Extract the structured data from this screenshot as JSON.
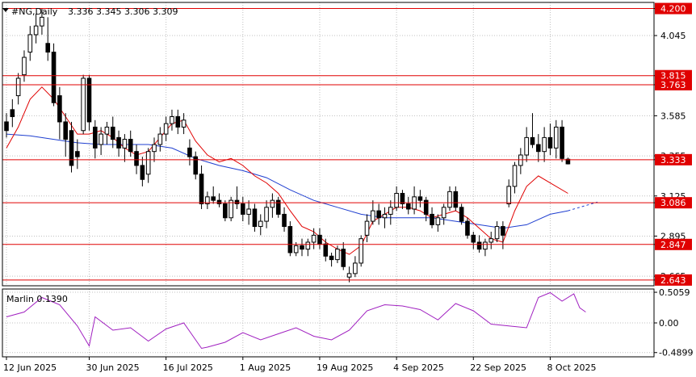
{
  "header": {
    "symbol": "#NG,Daily",
    "ohlc": "3.336 3.345 3.306 3.309"
  },
  "colors": {
    "background": "#ffffff",
    "candle": "#000000",
    "level_line": "#e00000",
    "level_label_bg": "#e00000",
    "level_label_text": "#ffffff",
    "ma_fast": "#e00000",
    "ma_slow": "#1f3fd0",
    "oscillator": "#a020c0",
    "grid": "#c0c0c0"
  },
  "chart_data": {
    "type": "candlestick",
    "price_axis": {
      "ylim": [
        2.61,
        4.235
      ],
      "ticks": [
        "4.200",
        "4.045",
        "3.815",
        "3.763",
        "3.585",
        "3.355",
        "3.333",
        "3.125",
        "3.086",
        "2.895",
        "2.847",
        "2.665",
        "2.643"
      ]
    },
    "x_axis": {
      "labels": [
        "12 Jun 2025",
        "30 Jun 2025",
        "16 Jul 2025",
        "1 Aug 2025",
        "19 Aug 2025",
        "4 Sep 2025",
        "22 Sep 2025",
        "8 Oct 2025"
      ],
      "label_bar_index": [
        0,
        14,
        27,
        40,
        53,
        66,
        79,
        92
      ]
    },
    "levels": [
      {
        "value": 4.2,
        "label": "4.200"
      },
      {
        "value": 3.815,
        "label": "3.815"
      },
      {
        "value": 3.763,
        "label": "3.763"
      },
      {
        "value": 3.333,
        "label": "3.333"
      },
      {
        "value": 3.086,
        "label": "3.086"
      },
      {
        "value": 2.847,
        "label": "2.847"
      },
      {
        "value": 2.643,
        "label": "2.643"
      }
    ],
    "candles": [
      [
        3.55,
        3.6,
        3.46,
        3.5
      ],
      [
        3.62,
        3.68,
        3.52,
        3.58
      ],
      [
        3.7,
        3.83,
        3.65,
        3.8
      ],
      [
        3.82,
        3.96,
        3.78,
        3.92
      ],
      [
        3.95,
        4.1,
        3.9,
        4.05
      ],
      [
        4.05,
        4.17,
        4.0,
        4.1
      ],
      [
        4.1,
        4.2,
        4.05,
        4.15
      ],
      [
        4.0,
        4.15,
        3.9,
        3.95
      ],
      [
        3.95,
        4.0,
        3.64,
        3.66
      ],
      [
        3.7,
        3.75,
        3.45,
        3.55
      ],
      [
        3.55,
        3.6,
        3.35,
        3.45
      ],
      [
        3.5,
        3.55,
        3.26,
        3.3
      ],
      [
        3.38,
        3.45,
        3.28,
        3.35
      ],
      [
        3.5,
        3.82,
        3.48,
        3.8
      ],
      [
        3.8,
        3.82,
        3.5,
        3.55
      ],
      [
        3.52,
        3.56,
        3.34,
        3.4
      ],
      [
        3.42,
        3.52,
        3.36,
        3.48
      ],
      [
        3.48,
        3.55,
        3.42,
        3.52
      ],
      [
        3.52,
        3.58,
        3.4,
        3.45
      ],
      [
        3.46,
        3.5,
        3.35,
        3.4
      ],
      [
        3.4,
        3.48,
        3.32,
        3.45
      ],
      [
        3.45,
        3.5,
        3.35,
        3.38
      ],
      [
        3.38,
        3.42,
        3.25,
        3.3
      ],
      [
        3.3,
        3.35,
        3.18,
        3.22
      ],
      [
        3.25,
        3.4,
        3.2,
        3.38
      ],
      [
        3.38,
        3.46,
        3.32,
        3.42
      ],
      [
        3.42,
        3.52,
        3.38,
        3.48
      ],
      [
        3.48,
        3.58,
        3.44,
        3.54
      ],
      [
        3.54,
        3.62,
        3.5,
        3.58
      ],
      [
        3.58,
        3.62,
        3.48,
        3.52
      ],
      [
        3.52,
        3.6,
        3.48,
        3.56
      ],
      [
        3.4,
        3.45,
        3.3,
        3.35
      ],
      [
        3.35,
        3.38,
        3.22,
        3.25
      ],
      [
        3.25,
        3.3,
        3.05,
        3.08
      ],
      [
        3.08,
        3.15,
        3.05,
        3.12
      ],
      [
        3.12,
        3.18,
        3.08,
        3.1
      ],
      [
        3.1,
        3.14,
        3.06,
        3.08
      ],
      [
        3.08,
        3.1,
        2.98,
        3.0
      ],
      [
        3.0,
        3.12,
        2.98,
        3.1
      ],
      [
        3.1,
        3.18,
        3.05,
        3.08
      ],
      [
        3.08,
        3.12,
        2.98,
        3.02
      ],
      [
        3.02,
        3.1,
        2.96,
        3.05
      ],
      [
        3.05,
        3.08,
        2.92,
        2.95
      ],
      [
        2.95,
        3.02,
        2.9,
        2.98
      ],
      [
        2.98,
        3.1,
        2.94,
        3.06
      ],
      [
        3.06,
        3.14,
        3.0,
        3.1
      ],
      [
        3.1,
        3.12,
        3.0,
        3.02
      ],
      [
        3.02,
        3.06,
        2.92,
        2.95
      ],
      [
        2.95,
        2.98,
        2.78,
        2.8
      ],
      [
        2.8,
        2.86,
        2.78,
        2.84
      ],
      [
        2.84,
        2.88,
        2.78,
        2.82
      ],
      [
        2.82,
        2.88,
        2.78,
        2.86
      ],
      [
        2.86,
        2.94,
        2.82,
        2.9
      ],
      [
        2.9,
        2.94,
        2.82,
        2.85
      ],
      [
        2.85,
        2.88,
        2.75,
        2.78
      ],
      [
        2.78,
        2.8,
        2.72,
        2.76
      ],
      [
        2.76,
        2.84,
        2.74,
        2.82
      ],
      [
        2.82,
        2.86,
        2.7,
        2.72
      ],
      [
        2.66,
        2.72,
        2.63,
        2.68
      ],
      [
        2.68,
        2.78,
        2.66,
        2.74
      ],
      [
        2.74,
        2.9,
        2.72,
        2.88
      ],
      [
        2.9,
        3.02,
        2.86,
        2.98
      ],
      [
        2.98,
        3.1,
        2.96,
        3.04
      ],
      [
        3.04,
        3.08,
        2.96,
        3.0
      ],
      [
        3.0,
        3.06,
        2.94,
        3.02
      ],
      [
        3.02,
        3.1,
        2.96,
        3.06
      ],
      [
        3.06,
        3.18,
        3.04,
        3.14
      ],
      [
        3.14,
        3.16,
        3.05,
        3.08
      ],
      [
        3.08,
        3.12,
        3.02,
        3.05
      ],
      [
        3.05,
        3.18,
        3.02,
        3.12
      ],
      [
        3.12,
        3.16,
        3.06,
        3.1
      ],
      [
        3.1,
        3.12,
        2.98,
        3.02
      ],
      [
        3.02,
        3.06,
        2.94,
        2.96
      ],
      [
        2.96,
        3.02,
        2.92,
        3.0
      ],
      [
        3.0,
        3.08,
        2.96,
        3.06
      ],
      [
        3.06,
        3.18,
        3.04,
        3.15
      ],
      [
        3.15,
        3.18,
        3.04,
        3.06
      ],
      [
        3.06,
        3.08,
        2.96,
        2.98
      ],
      [
        2.98,
        3.0,
        2.88,
        2.9
      ],
      [
        2.9,
        2.92,
        2.82,
        2.86
      ],
      [
        2.86,
        2.9,
        2.8,
        2.82
      ],
      [
        2.82,
        2.88,
        2.78,
        2.86
      ],
      [
        2.86,
        2.92,
        2.82,
        2.88
      ],
      [
        2.88,
        2.98,
        2.86,
        2.95
      ],
      [
        2.95,
        2.98,
        2.82,
        2.9
      ],
      [
        3.08,
        3.22,
        3.06,
        3.18
      ],
      [
        3.18,
        3.32,
        3.14,
        3.3
      ],
      [
        3.3,
        3.4,
        3.25,
        3.36
      ],
      [
        3.36,
        3.52,
        3.32,
        3.46
      ],
      [
        3.46,
        3.6,
        3.4,
        3.42
      ],
      [
        3.42,
        3.48,
        3.32,
        3.38
      ],
      [
        3.38,
        3.52,
        3.32,
        3.46
      ],
      [
        3.46,
        3.54,
        3.36,
        3.4
      ],
      [
        3.4,
        3.56,
        3.34,
        3.52
      ],
      [
        3.52,
        3.56,
        3.32,
        3.34
      ],
      [
        3.336,
        3.345,
        3.306,
        3.309
      ]
    ],
    "ma_fast": [
      [
        0,
        3.4
      ],
      [
        2,
        3.52
      ],
      [
        4,
        3.68
      ],
      [
        6,
        3.75
      ],
      [
        8,
        3.68
      ],
      [
        10,
        3.58
      ],
      [
        12,
        3.48
      ],
      [
        14,
        3.48
      ],
      [
        16,
        3.5
      ],
      [
        18,
        3.46
      ],
      [
        20,
        3.4
      ],
      [
        22,
        3.36
      ],
      [
        24,
        3.38
      ],
      [
        26,
        3.46
      ],
      [
        28,
        3.54
      ],
      [
        30,
        3.56
      ],
      [
        32,
        3.44
      ],
      [
        34,
        3.36
      ],
      [
        36,
        3.32
      ],
      [
        38,
        3.34
      ],
      [
        40,
        3.3
      ],
      [
        42,
        3.24
      ],
      [
        44,
        3.2
      ],
      [
        46,
        3.14
      ],
      [
        48,
        3.04
      ],
      [
        50,
        2.95
      ],
      [
        52,
        2.92
      ],
      [
        54,
        2.86
      ],
      [
        56,
        2.82
      ],
      [
        58,
        2.79
      ],
      [
        60,
        2.84
      ],
      [
        62,
        2.98
      ],
      [
        64,
        3.02
      ],
      [
        66,
        3.06
      ],
      [
        68,
        3.06
      ],
      [
        70,
        3.04
      ],
      [
        72,
        3.0
      ],
      [
        74,
        3.02
      ],
      [
        76,
        3.04
      ],
      [
        78,
        3.0
      ],
      [
        80,
        2.94
      ],
      [
        82,
        2.88
      ],
      [
        84,
        2.86
      ],
      [
        86,
        3.04
      ],
      [
        88,
        3.18
      ],
      [
        90,
        3.24
      ],
      [
        92,
        3.2
      ],
      [
        95,
        3.14
      ]
    ],
    "ma_slow": [
      [
        0,
        3.48
      ],
      [
        4,
        3.47
      ],
      [
        8,
        3.45
      ],
      [
        12,
        3.43
      ],
      [
        16,
        3.42
      ],
      [
        20,
        3.42
      ],
      [
        24,
        3.42
      ],
      [
        28,
        3.4
      ],
      [
        32,
        3.34
      ],
      [
        36,
        3.3
      ],
      [
        40,
        3.27
      ],
      [
        44,
        3.23
      ],
      [
        48,
        3.16
      ],
      [
        52,
        3.1
      ],
      [
        56,
        3.06
      ],
      [
        60,
        3.02
      ],
      [
        64,
        3.0
      ],
      [
        68,
        3.0
      ],
      [
        72,
        3.0
      ],
      [
        76,
        2.98
      ],
      [
        80,
        2.96
      ],
      [
        84,
        2.94
      ],
      [
        88,
        2.96
      ],
      [
        92,
        3.02
      ],
      [
        95,
        3.04
      ],
      [
        100,
        3.09
      ]
    ],
    "oscillator": {
      "name": "Marlin 0.1390",
      "ylim": [
        -0.56,
        0.56
      ],
      "ticks": [
        "0.5059",
        "0.00",
        "-0.4899"
      ],
      "values": [
        [
          0,
          0.1
        ],
        [
          3,
          0.18
        ],
        [
          6,
          0.42
        ],
        [
          9,
          0.3
        ],
        [
          12,
          -0.05
        ],
        [
          14,
          -0.38
        ],
        [
          15,
          0.1
        ],
        [
          18,
          -0.12
        ],
        [
          21,
          -0.08
        ],
        [
          24,
          -0.3
        ],
        [
          27,
          -0.1
        ],
        [
          30,
          0.0
        ],
        [
          33,
          -0.42
        ],
        [
          34,
          -0.4
        ],
        [
          37,
          -0.32
        ],
        [
          40,
          -0.16
        ],
        [
          43,
          -0.28
        ],
        [
          46,
          -0.18
        ],
        [
          49,
          -0.08
        ],
        [
          52,
          -0.22
        ],
        [
          55,
          -0.28
        ],
        [
          58,
          -0.12
        ],
        [
          61,
          0.2
        ],
        [
          64,
          0.3
        ],
        [
          67,
          0.28
        ],
        [
          70,
          0.22
        ],
        [
          73,
          0.05
        ],
        [
          76,
          0.32
        ],
        [
          79,
          0.2
        ],
        [
          82,
          -0.02
        ],
        [
          85,
          -0.05
        ],
        [
          88,
          -0.08
        ],
        [
          90,
          0.42
        ],
        [
          92,
          0.5
        ],
        [
          94,
          0.36
        ],
        [
          96,
          0.48
        ],
        [
          97,
          0.25
        ],
        [
          98,
          0.18
        ]
      ]
    }
  }
}
